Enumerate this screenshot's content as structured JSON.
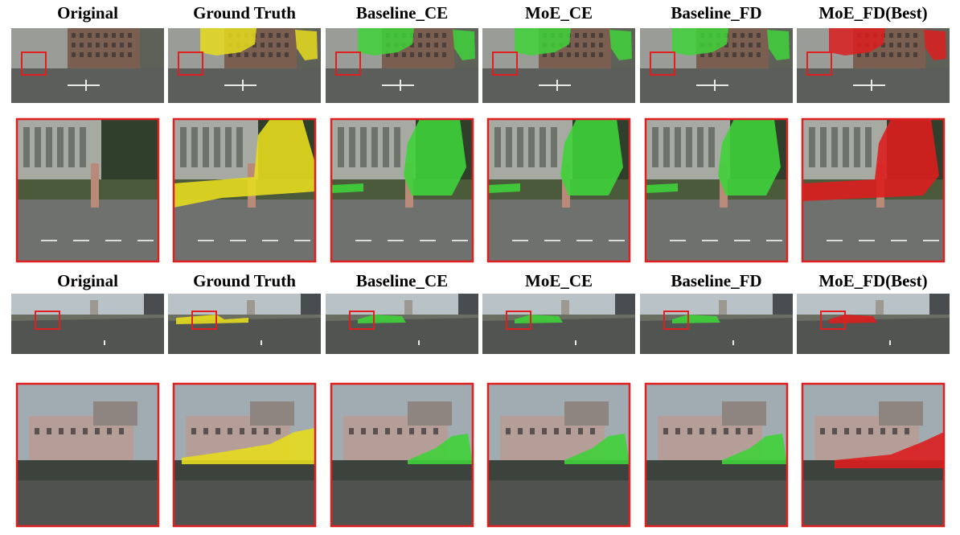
{
  "rows": [
    {
      "headers": [
        "Original",
        "Ground Truth",
        "Baseline_CE",
        "MoE_CE",
        "Baseline_FD",
        "MoE_FD(Best)"
      ]
    },
    {
      "headers": [
        "Original",
        "Ground Truth",
        "Baseline_CE",
        "MoE_CE",
        "Baseline_FD",
        "MoE_FD(Best)"
      ]
    }
  ]
}
